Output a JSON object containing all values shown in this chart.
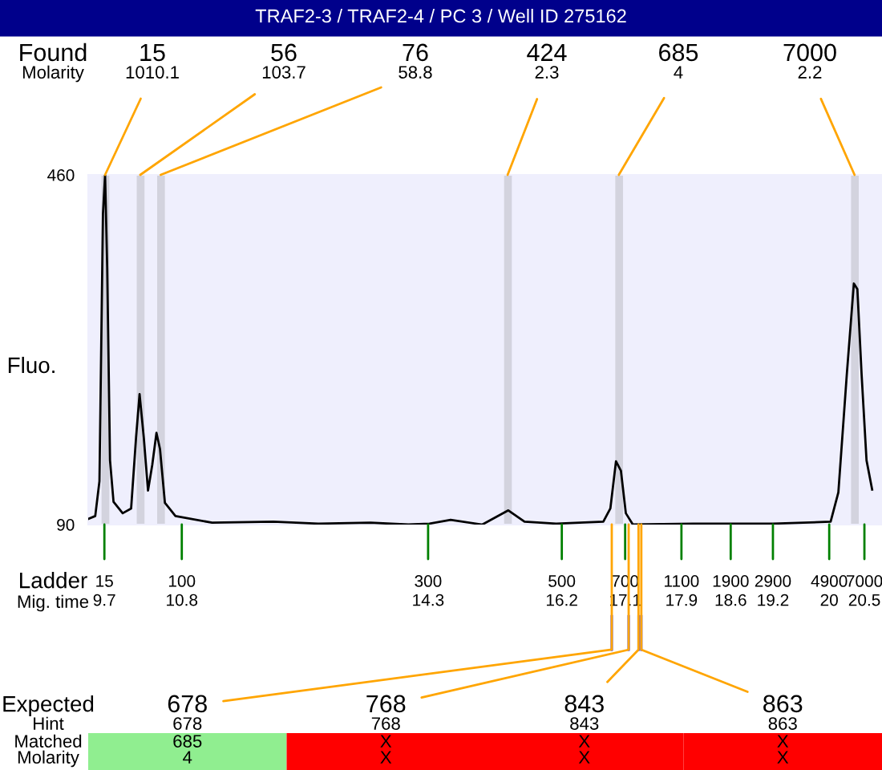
{
  "chart_data": [
    {
      "type": "line",
      "title": "TRAF2-3 / TRAF2-4 / PC 3 / Well ID 275162",
      "ylabel": "Fluo.",
      "x": [
        9.47,
        9.57,
        9.63,
        9.68,
        9.71,
        9.74,
        9.78,
        9.83,
        9.96,
        10.08,
        10.15,
        10.2,
        10.26,
        10.32,
        10.38,
        10.44,
        10.49,
        10.56,
        10.71,
        11.23,
        12.1,
        12.74,
        13.48,
        14.02,
        14.32,
        14.62,
        15.07,
        15.44,
        15.67,
        16.12,
        16.79,
        16.89,
        16.97,
        17.04,
        17.11,
        17.21,
        18.07,
        19.2,
        20.02,
        20.13,
        20.25,
        20.35,
        20.4,
        20.46,
        20.53,
        20.61
      ],
      "series": [
        {
          "color": "#000000",
          "values": [
            96,
            99,
            136,
            419,
            460,
            362,
            158,
            114,
            102,
            107,
            182,
            228,
            182,
            126,
            153,
            187,
            170,
            113,
            99,
            92,
            93,
            91,
            92,
            90,
            91,
            95,
            90,
            105,
            93,
            91,
            93,
            107,
            157,
            147,
            102,
            90,
            91,
            91,
            93,
            124,
            249,
            345,
            339,
            249,
            158,
            127
          ]
        }
      ],
      "xlim": [
        9.47,
        20.75
      ],
      "ylim": [
        90,
        460
      ],
      "yticks": [
        90,
        460
      ],
      "xticks": [
        9.7,
        10.8,
        14.3,
        16.2,
        17.1,
        17.9,
        18.6,
        19.2,
        20,
        20.5
      ],
      "bands": [
        {
          "axis": "x",
          "from": 9.66,
          "to": 9.77,
          "color": "#d3d3de"
        },
        {
          "axis": "x",
          "from": 10.16,
          "to": 10.27,
          "color": "#d3d3de"
        },
        {
          "axis": "x",
          "from": 10.45,
          "to": 10.56,
          "color": "#d3d3de"
        },
        {
          "axis": "x",
          "from": 15.38,
          "to": 15.49,
          "color": "#d3d3de"
        },
        {
          "axis": "x",
          "from": 16.96,
          "to": 17.07,
          "color": "#d3d3de"
        },
        {
          "axis": "x",
          "from": 20.31,
          "to": 20.42,
          "color": "#d3d3de"
        }
      ],
      "annotations": [
        "Found",
        "Molarity",
        "Ladder",
        "Mig. time",
        "15",
        "56",
        "76",
        "424",
        "685",
        "7000",
        {
          "text": "1010.1",
          "x": 9.71,
          "y": 460
        },
        {
          "text": "103.7",
          "x": 10.21,
          "y": 460
        },
        {
          "text": "58.8",
          "x": 10.5,
          "y": 460
        },
        {
          "text": "2.3",
          "x": 15.43,
          "y": 460
        },
        {
          "text": "4",
          "x": 17.01,
          "y": 460
        },
        {
          "text": "2.2",
          "x": 20.36,
          "y": 460
        },
        {
          "text": "15",
          "x": 9.7,
          "y": 90
        },
        {
          "text": "100",
          "x": 10.8,
          "y": 90
        },
        {
          "text": "300",
          "x": 14.3,
          "y": 90
        },
        {
          "text": "500",
          "x": 16.2,
          "y": 90
        },
        {
          "text": "700",
          "x": 17.1,
          "y": 90
        },
        {
          "text": "1100",
          "x": 17.9,
          "y": 90
        },
        {
          "text": "1900",
          "x": 18.6,
          "y": 90
        },
        {
          "text": "2900",
          "x": 19.2,
          "y": 90
        },
        {
          "text": "4900",
          "x": 20,
          "y": 90
        },
        {
          "text": "7000",
          "x": 20.5,
          "y": 90
        },
        {
          "text": "678",
          "x": 16.91,
          "y": 90
        },
        {
          "text": "768",
          "x": 17.15,
          "y": 90
        },
        {
          "text": "843",
          "x": 17.29,
          "y": 90
        },
        {
          "text": "863",
          "x": 17.33,
          "y": 90
        }
      ],
      "grid": false
    },
    {
      "type": "other",
      "annotations": [
        "Expected",
        "Hint",
        "Matched",
        "Molarity"
      ],
      "cell_labels": [
        [
          "678",
          "768",
          "843",
          "863"
        ],
        [
          "685",
          "X",
          "X",
          "X"
        ],
        [
          "4",
          "X",
          "X",
          "X"
        ]
      ],
      "colors": [
        "#90ee90",
        "#ff0000",
        "#ff0000",
        "#ff0000"
      ]
    }
  ]
}
